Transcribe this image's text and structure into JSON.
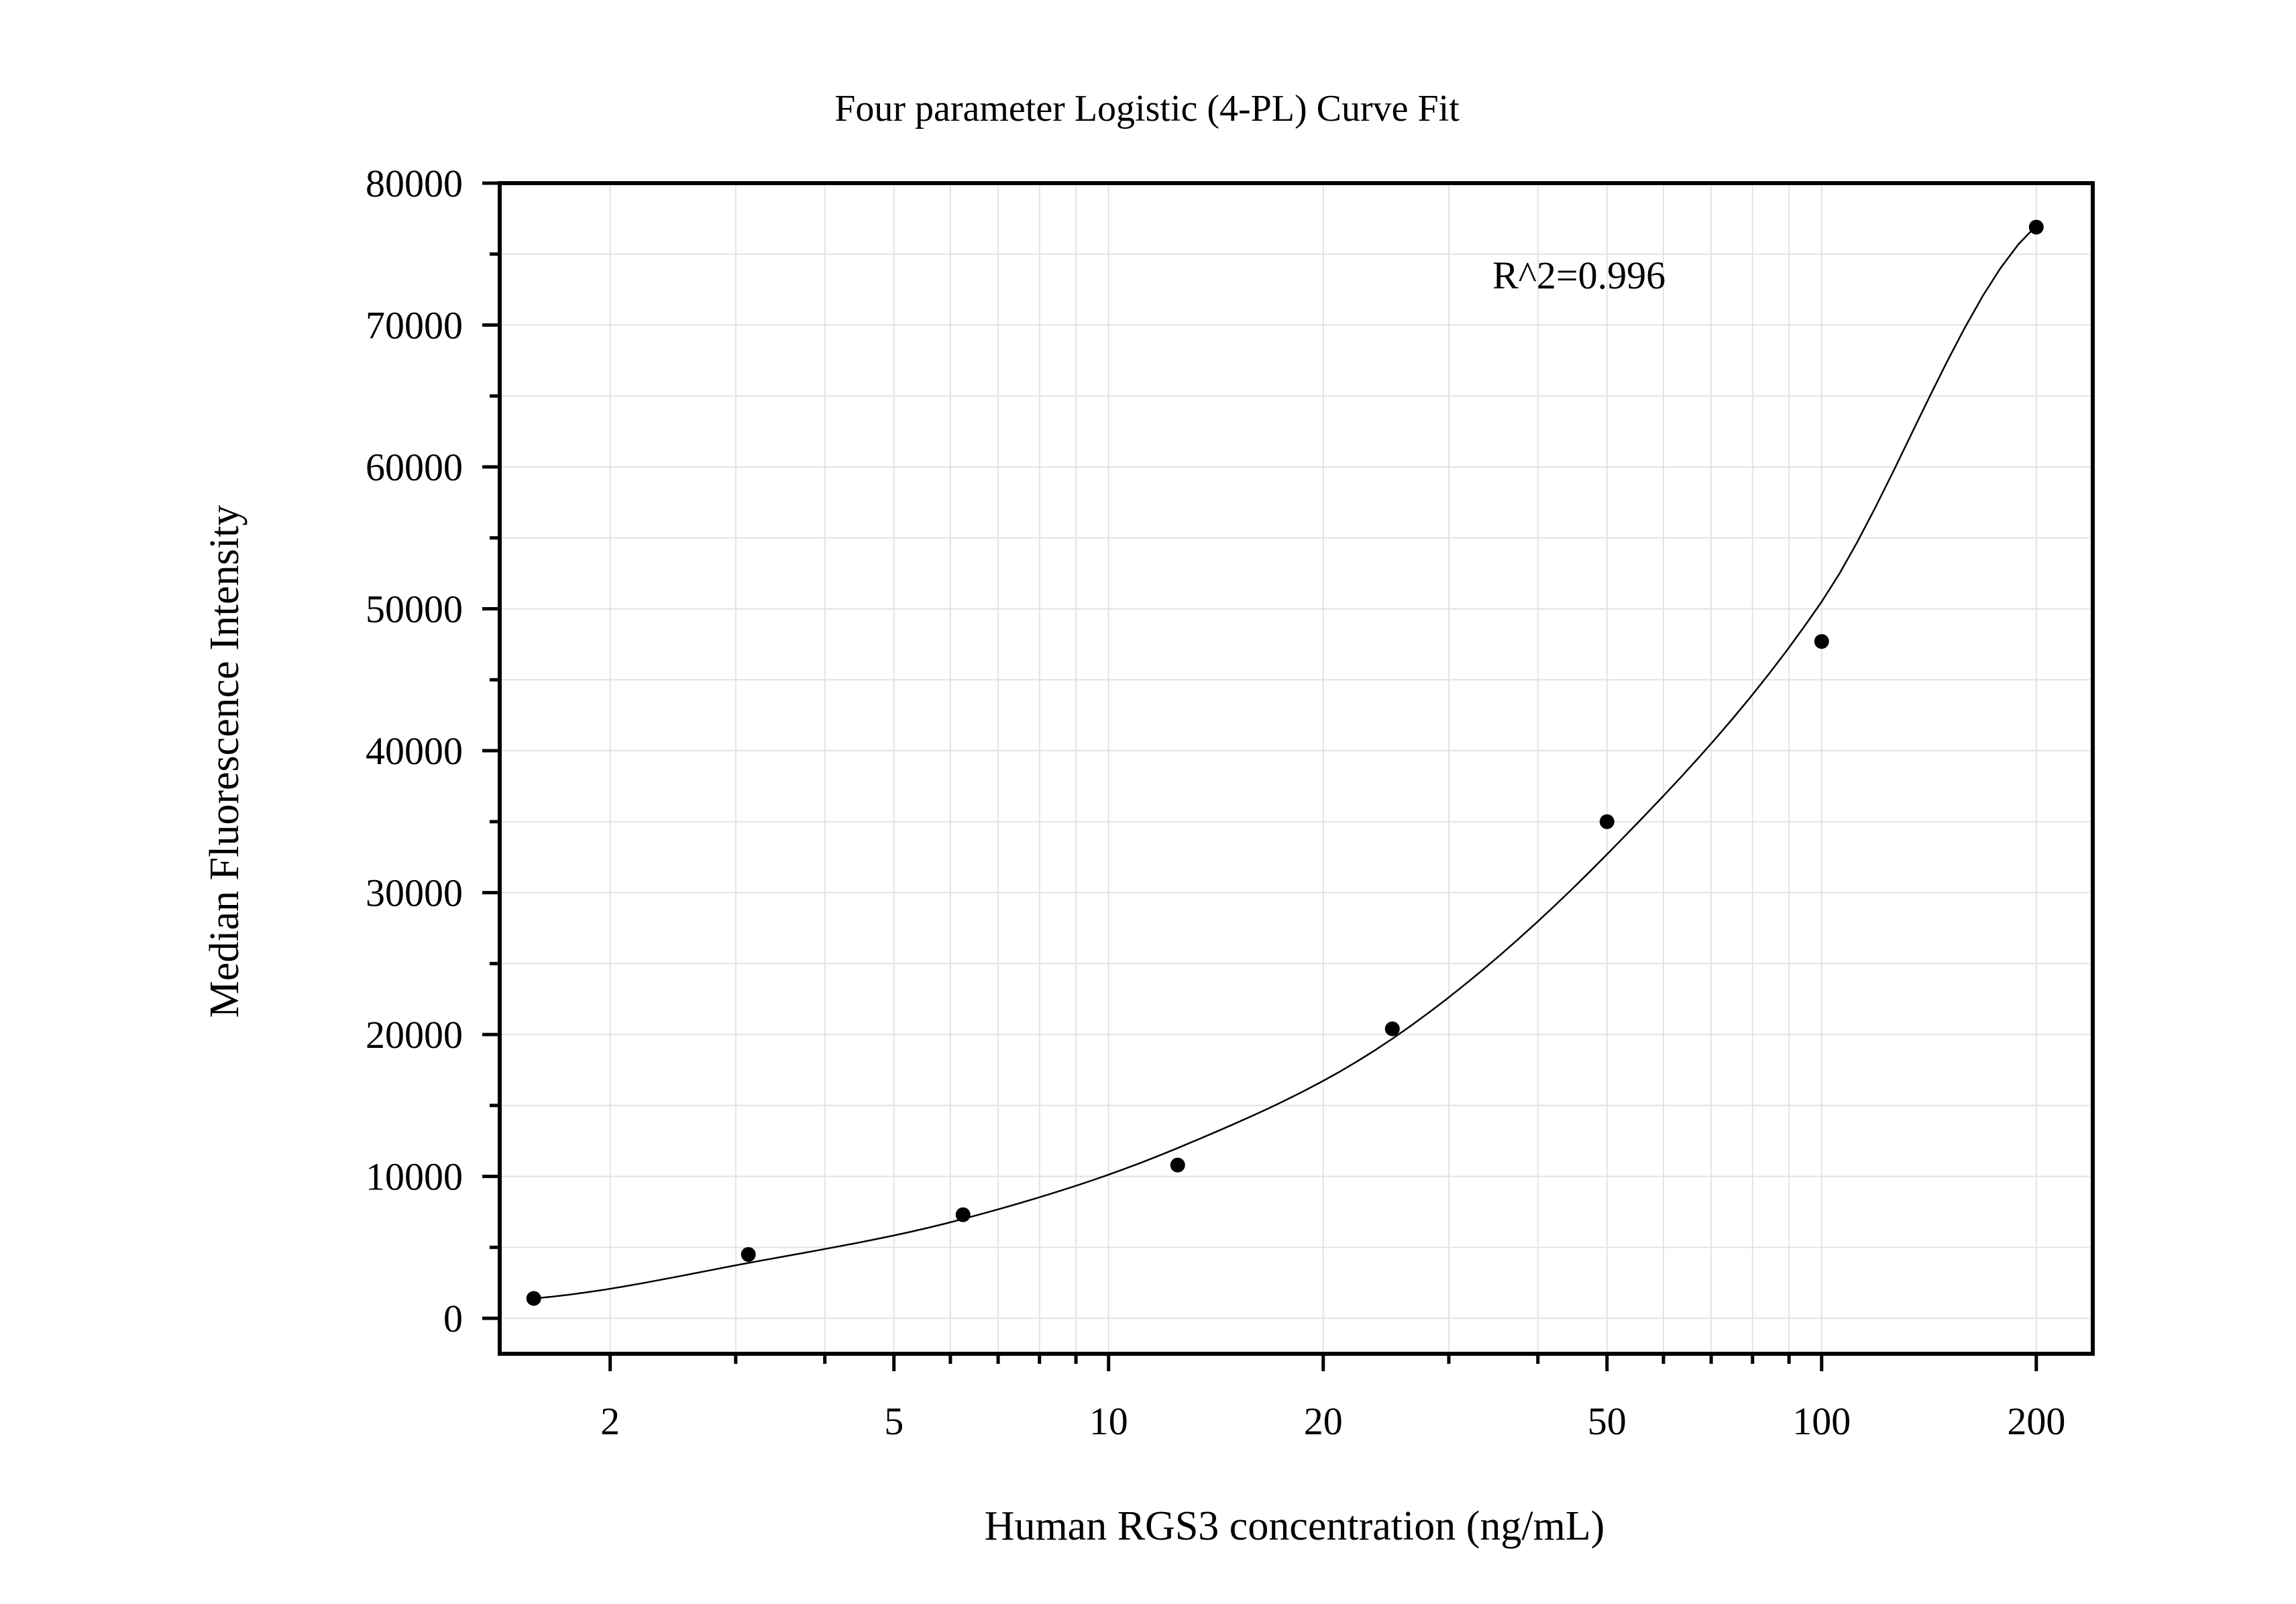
{
  "chart_data": {
    "type": "scatter",
    "title": "Four parameter Logistic (4-PL) Curve Fit",
    "xlabel": "Human RGS3 concentration (ng/mL)",
    "ylabel": "Median Fluorescence Intensity",
    "xscale": "log",
    "xlim": [
      1.4,
      240
    ],
    "ylim": [
      -2500,
      80000
    ],
    "xticks": [
      2,
      5,
      10,
      20,
      50,
      100,
      200
    ],
    "yticks": [
      0,
      10000,
      20000,
      30000,
      40000,
      50000,
      60000,
      70000,
      80000
    ],
    "grid": true,
    "legend": "none",
    "annotation": "R^2=0.996",
    "series": [
      {
        "points": [
          {
            "x": 1.5625,
            "y": 1400
          },
          {
            "x": 3.125,
            "y": 4500
          },
          {
            "x": 6.25,
            "y": 7300
          },
          {
            "x": 12.5,
            "y": 10800
          },
          {
            "x": 25,
            "y": 20400
          },
          {
            "x": 50,
            "y": 35000
          },
          {
            "x": 100,
            "y": 47700
          },
          {
            "x": 200,
            "y": 76900
          }
        ],
        "marker_color": "#000000"
      }
    ],
    "fit_curve": {
      "model": "4-PL",
      "points": [
        {
          "x": 1.5625,
          "y": 1400
        },
        {
          "x": 3.125,
          "y": 3900
        },
        {
          "x": 6.25,
          "y": 7000
        },
        {
          "x": 12.5,
          "y": 12000
        },
        {
          "x": 25,
          "y": 19700
        },
        {
          "x": 50,
          "y": 32700
        },
        {
          "x": 100,
          "y": 50500
        },
        {
          "x": 200,
          "y": 77000
        }
      ],
      "line_color": "#000000"
    }
  }
}
